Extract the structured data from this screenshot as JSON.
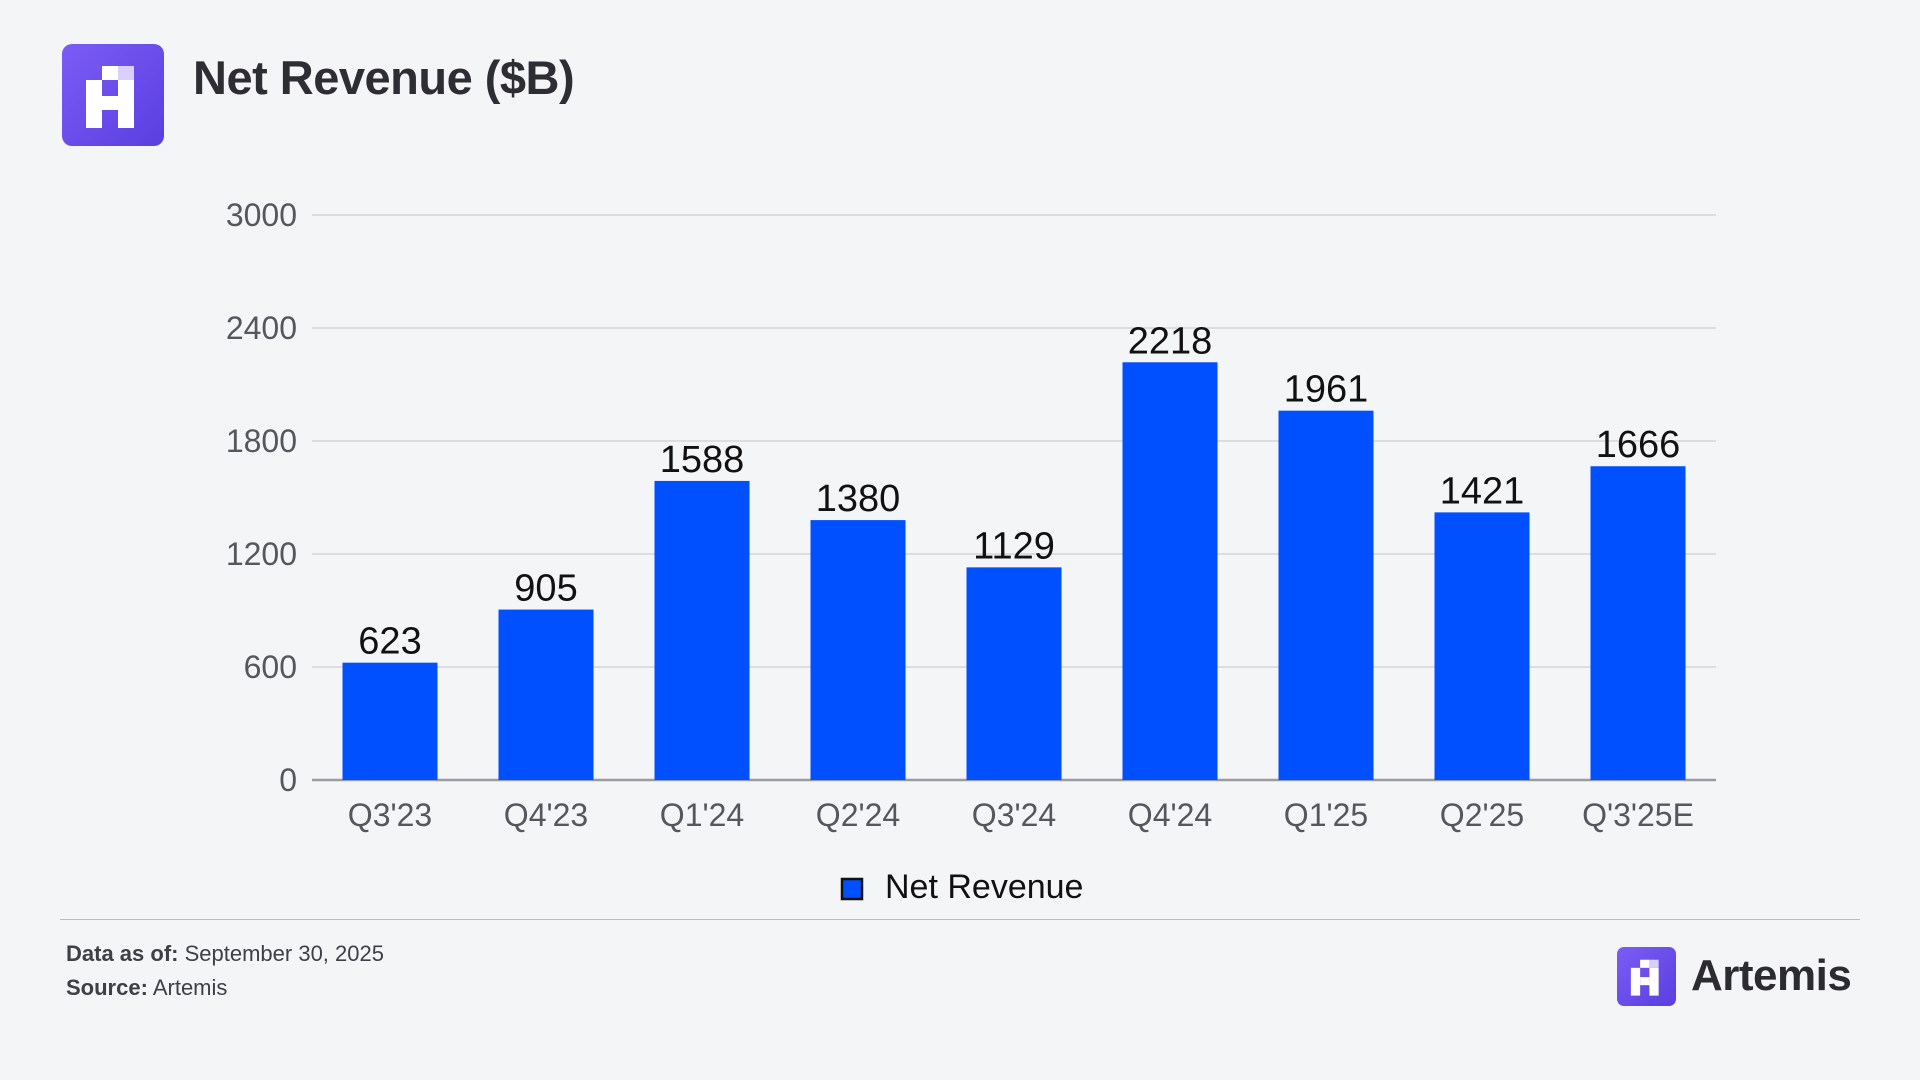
{
  "header": {
    "title": "Net Revenue ($B)",
    "logo_icon": "artemis-logo-icon"
  },
  "chart_data": {
    "type": "bar",
    "title": "Net Revenue ($B)",
    "categories": [
      "Q3'23",
      "Q4'23",
      "Q1'24",
      "Q2'24",
      "Q3'24",
      "Q4'24",
      "Q1'25",
      "Q2'25",
      "Q'3'25E"
    ],
    "series": [
      {
        "name": "Net Revenue",
        "color": "#0050ff",
        "values": [
          623,
          905,
          1588,
          1380,
          1129,
          2218,
          1961,
          1421,
          1666
        ]
      }
    ],
    "yticks": [
      0,
      600,
      1200,
      1800,
      2400,
      3000
    ],
    "ylim": [
      0,
      3000
    ],
    "grid": true,
    "legend_position": "bottom-center",
    "data_labels": true
  },
  "footer": {
    "data_as_of_label": "Data as of:",
    "data_as_of_value": "September 30, 2025",
    "source_label": "Source:",
    "source_value": "Artemis"
  },
  "brand": {
    "name": "Artemis",
    "logo_icon": "artemis-logo-icon"
  },
  "colors": {
    "background": "#f4f5f7",
    "bar": "#0050ff",
    "logo": "#6a4cf0",
    "grid": "#dcdde1",
    "axis": "#9a9ca2"
  }
}
